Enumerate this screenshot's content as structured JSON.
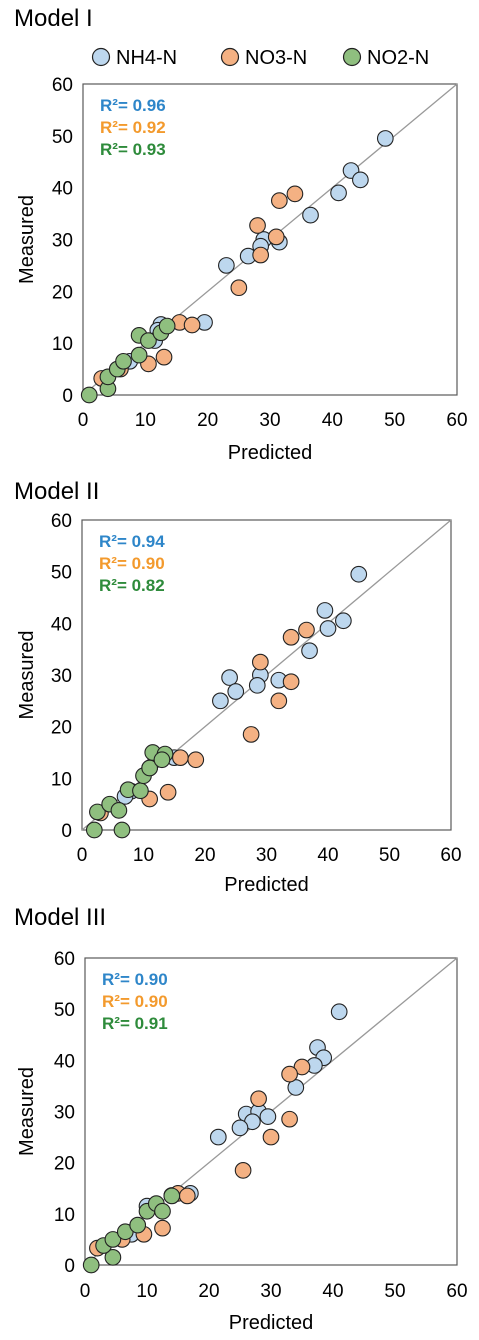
{
  "legend": [
    {
      "name": "NH4-N",
      "color": "#bdd7ee"
    },
    {
      "name": "NO3-N",
      "color": "#f4b183"
    },
    {
      "name": "NO2-N",
      "color": "#8fbf7f"
    }
  ],
  "r2_colors": {
    "nh4": "#2e86c9",
    "no3": "#f39a2d",
    "no2": "#2e8b3b"
  },
  "marker_stroke": "#222222",
  "line_color": "#999999",
  "chart_data": [
    {
      "type": "scatter",
      "title": "Model I",
      "xlabel": "Predicted",
      "ylabel": "Measured",
      "xlim": [
        0,
        60
      ],
      "ylim": [
        0,
        60
      ],
      "ticks": [
        "0",
        "10",
        "20",
        "30",
        "40",
        "50",
        "60"
      ],
      "grid": false,
      "legend": "top",
      "r2": [
        {
          "series": "NH4-N",
          "label": "R²= 0.96",
          "color": "#2e86c9"
        },
        {
          "series": "NO3-N",
          "label": "R²= 0.92",
          "color": "#f39a2d"
        },
        {
          "series": "NO2-N",
          "label": "R²= 0.93",
          "color": "#2e8b3b"
        }
      ],
      "series": [
        {
          "name": "NH4-N",
          "color": "#bdd7ee",
          "points": [
            [
              48.5,
              49.5
            ],
            [
              43,
              43.3
            ],
            [
              44.5,
              41.5
            ],
            [
              41,
              39
            ],
            [
              36.5,
              34.7
            ],
            [
              29,
              30
            ],
            [
              31.5,
              29.5
            ],
            [
              28.5,
              28.7
            ],
            [
              26.5,
              26.8
            ],
            [
              23,
              25
            ],
            [
              19.5,
              14
            ],
            [
              12.5,
              13.6
            ],
            [
              12,
              12.5
            ],
            [
              11.5,
              10.5
            ],
            [
              7.5,
              6.5
            ]
          ]
        },
        {
          "name": "NO3-N",
          "color": "#f4b183",
          "points": [
            [
              34,
              38.8
            ],
            [
              31.5,
              37.5
            ],
            [
              28,
              32.7
            ],
            [
              31,
              30.5
            ],
            [
              28.5,
              27
            ],
            [
              25,
              20.7
            ],
            [
              15.5,
              14
            ],
            [
              17.5,
              13.5
            ],
            [
              13,
              7.3
            ],
            [
              10.5,
              6
            ],
            [
              6,
              5
            ],
            [
              3,
              3.2
            ]
          ]
        },
        {
          "name": "NO2-N",
          "color": "#8fbf7f",
          "points": [
            [
              1,
              0
            ],
            [
              4,
              1.2
            ],
            [
              4,
              3.5
            ],
            [
              5.5,
              5
            ],
            [
              6.5,
              6.5
            ],
            [
              9,
              7.7
            ],
            [
              9,
              11.5
            ],
            [
              10.5,
              10.5
            ],
            [
              12.5,
              12
            ],
            [
              13.5,
              13.3
            ]
          ]
        }
      ]
    },
    {
      "type": "scatter",
      "title": "Model II",
      "xlabel": "Predicted",
      "ylabel": "Measured",
      "xlim": [
        0,
        60
      ],
      "ylim": [
        0,
        60
      ],
      "ticks": [
        "0",
        "10",
        "20",
        "30",
        "40",
        "50",
        "60"
      ],
      "grid": false,
      "r2": [
        {
          "series": "NH4-N",
          "label": "R²= 0.94",
          "color": "#2e86c9"
        },
        {
          "series": "NO3-N",
          "label": "R²= 0.90",
          "color": "#f39a2d"
        },
        {
          "series": "NO2-N",
          "label": "R²= 0.82",
          "color": "#2e8b3b"
        }
      ],
      "series": [
        {
          "name": "NH4-N",
          "color": "#bdd7ee",
          "points": [
            [
              45,
              49.5
            ],
            [
              39.5,
              42.5
            ],
            [
              42.5,
              40.5
            ],
            [
              40,
              39
            ],
            [
              37,
              34.7
            ],
            [
              24,
              29.5
            ],
            [
              32,
              29
            ],
            [
              29,
              30
            ],
            [
              28.5,
              28
            ],
            [
              25,
              26.8
            ],
            [
              22.5,
              25
            ],
            [
              15,
              14
            ],
            [
              12,
              13.6
            ],
            [
              11,
              12
            ],
            [
              8,
              7.5
            ],
            [
              7,
              6.5
            ]
          ]
        },
        {
          "name": "NO3-N",
          "color": "#f4b183",
          "points": [
            [
              36.5,
              38.7
            ],
            [
              34,
              37.3
            ],
            [
              29,
              32.5
            ],
            [
              34,
              28.7
            ],
            [
              32,
              25
            ],
            [
              27.5,
              18.5
            ],
            [
              16,
              14
            ],
            [
              18.5,
              13.6
            ],
            [
              14,
              7.3
            ],
            [
              11,
              6
            ],
            [
              3,
              3.3
            ]
          ]
        },
        {
          "name": "NO2-N",
          "color": "#8fbf7f",
          "points": [
            [
              2,
              0
            ],
            [
              6.5,
              0
            ],
            [
              2.5,
              3.5
            ],
            [
              4.5,
              5
            ],
            [
              6,
              3.8
            ],
            [
              7.5,
              7.8
            ],
            [
              9.5,
              7.6
            ],
            [
              10,
              10.5
            ],
            [
              11,
              12
            ],
            [
              11.5,
              15
            ],
            [
              13.5,
              14.7
            ],
            [
              13,
              13.6
            ]
          ]
        }
      ]
    },
    {
      "type": "scatter",
      "title": "Model III",
      "xlabel": "Predicted",
      "ylabel": "Measured",
      "xlim": [
        0,
        60
      ],
      "ylim": [
        0,
        60
      ],
      "ticks": [
        "0",
        "10",
        "20",
        "30",
        "40",
        "50",
        "60"
      ],
      "grid": false,
      "r2": [
        {
          "series": "NH4-N",
          "label": "R²= 0.90",
          "color": "#2e86c9"
        },
        {
          "series": "NO3-N",
          "label": "R²= 0.90",
          "color": "#f39a2d"
        },
        {
          "series": "NO2-N",
          "label": "R²= 0.91",
          "color": "#2e8b3b"
        }
      ],
      "series": [
        {
          "name": "NH4-N",
          "color": "#bdd7ee",
          "points": [
            [
              41,
              49.5
            ],
            [
              37.5,
              42.5
            ],
            [
              38.5,
              40.5
            ],
            [
              37,
              39
            ],
            [
              34,
              34.7
            ],
            [
              26,
              29.5
            ],
            [
              28,
              30
            ],
            [
              29.5,
              29
            ],
            [
              27,
              28
            ],
            [
              25,
              26.8
            ],
            [
              21.5,
              25
            ],
            [
              17,
              14
            ],
            [
              14,
              13.6
            ],
            [
              10,
              11.5
            ],
            [
              7.5,
              6
            ]
          ]
        },
        {
          "name": "NO3-N",
          "color": "#f4b183",
          "points": [
            [
              35,
              38.7
            ],
            [
              33,
              37.3
            ],
            [
              28,
              32.5
            ],
            [
              33,
              28.5
            ],
            [
              30,
              25
            ],
            [
              25.5,
              18.5
            ],
            [
              15,
              14
            ],
            [
              16.5,
              13.5
            ],
            [
              12.5,
              7.2
            ],
            [
              9.5,
              6
            ],
            [
              6,
              5
            ],
            [
              2,
              3.3
            ]
          ]
        },
        {
          "name": "NO2-N",
          "color": "#8fbf7f",
          "points": [
            [
              1,
              0
            ],
            [
              4.5,
              1.5
            ],
            [
              3,
              3.8
            ],
            [
              4.5,
              5
            ],
            [
              6.5,
              6.5
            ],
            [
              8.5,
              7.8
            ],
            [
              10,
              10.5
            ],
            [
              11.5,
              12
            ],
            [
              12.5,
              10.5
            ],
            [
              14,
              13.5
            ]
          ]
        }
      ]
    }
  ]
}
